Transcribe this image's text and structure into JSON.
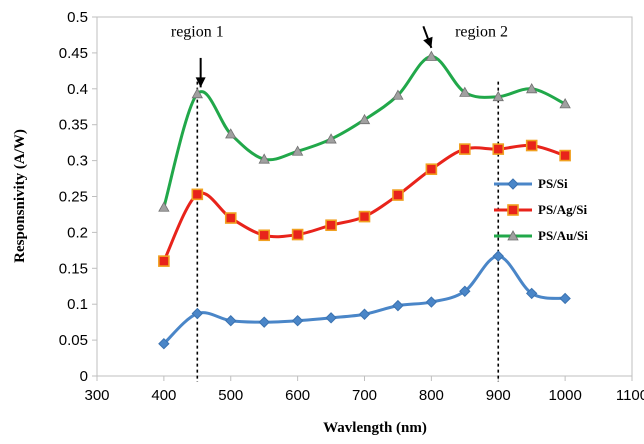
{
  "chart_data": {
    "type": "line",
    "title": "",
    "xlabel": "Wavlength (nm)",
    "ylabel": "Responsnivity (A/W)",
    "xlim": [
      300,
      1100
    ],
    "ylim": [
      0,
      0.5
    ],
    "x_ticks": [
      "300",
      "400",
      "500",
      "600",
      "700",
      "800",
      "900",
      "1000",
      "1100"
    ],
    "y_ticks": [
      "0",
      "0.05",
      "0.1",
      "0.15",
      "0.2",
      "0.25",
      "0.3",
      "0.35",
      "0.4",
      "0.45",
      "0.5"
    ],
    "x": [
      400,
      450,
      500,
      550,
      600,
      650,
      700,
      750,
      800,
      850,
      900,
      950,
      1000
    ],
    "series": [
      {
        "name": "PS/Si",
        "color": "#4a86c8",
        "marker": "diamond",
        "values": [
          0.045,
          0.087,
          0.077,
          0.075,
          0.077,
          0.081,
          0.086,
          0.098,
          0.103,
          0.118,
          0.167,
          0.115,
          0.108
        ]
      },
      {
        "name": "PS/Ag/Si",
        "color": "#e8231b",
        "marker": "square",
        "values": [
          0.16,
          0.253,
          0.22,
          0.196,
          0.197,
          0.21,
          0.222,
          0.252,
          0.288,
          0.316,
          0.316,
          0.321,
          0.307
        ]
      },
      {
        "name": "PS/Au/Si",
        "color": "#21a84a",
        "marker": "triangle",
        "values": [
          0.235,
          0.393,
          0.337,
          0.302,
          0.313,
          0.33,
          0.357,
          0.391,
          0.445,
          0.395,
          0.389,
          0.4,
          0.379
        ]
      }
    ],
    "legend_position": "right",
    "grid": false,
    "annotations": [
      {
        "text": "region 1",
        "x": 450,
        "y": 0.48
      },
      {
        "text": "region 2",
        "x": 875,
        "y": 0.48
      }
    ],
    "reference_lines": [
      {
        "x": 450,
        "style": "dotted"
      },
      {
        "x": 900,
        "style": "dotted"
      }
    ]
  }
}
